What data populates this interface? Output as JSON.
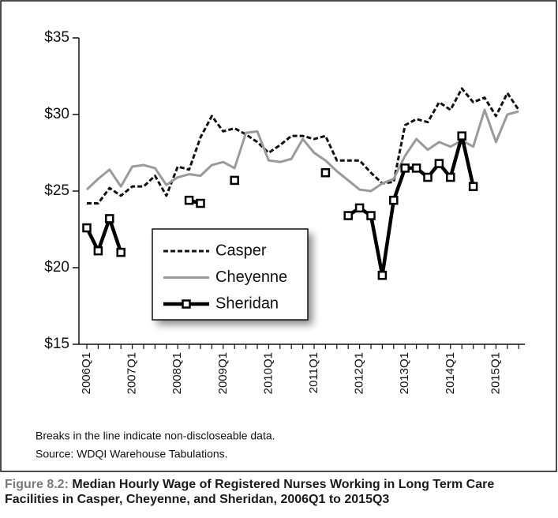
{
  "chart_data": {
    "type": "line",
    "title": "Median Hourly Wage of Registered Nurses Working in Long Term Care Facilities in Casper, Cheyenne, and Sheridan, 2006Q1 to 2015Q3",
    "figure_label": "Figure 8.2:",
    "notes": [
      "Breaks in the line indicate non-discloseable data.",
      "Source: WDQI Warehouse Tabulations."
    ],
    "categories": [
      "2006Q1",
      null,
      null,
      null,
      "2007Q1",
      null,
      null,
      null,
      "2008Q1",
      null,
      null,
      null,
      "2009Q1",
      null,
      null,
      null,
      "2010Q1",
      null,
      null,
      null,
      "2011Q1",
      null,
      null,
      null,
      "2012Q1",
      null,
      null,
      null,
      "2013Q1",
      null,
      null,
      null,
      "2014Q1",
      null,
      null,
      null,
      "2015Q1",
      null,
      null
    ],
    "series": [
      {
        "name": "Casper",
        "color": "#111111",
        "line_style": "dashed",
        "marker": "none",
        "values": [
          24.2,
          24.2,
          25.2,
          24.7,
          25.3,
          25.3,
          26.0,
          24.7,
          26.6,
          26.4,
          28.5,
          29.9,
          28.9,
          29.1,
          28.7,
          28.2,
          27.5,
          28.0,
          28.6,
          28.6,
          28.4,
          28.6,
          27.0,
          27.0,
          27.0,
          26.2,
          25.5,
          25.6,
          29.3,
          29.7,
          29.5,
          30.8,
          30.3,
          31.7,
          30.8,
          31.1,
          29.9,
          31.4,
          30.3
        ]
      },
      {
        "name": "Cheyenne",
        "color": "#9a9a9a",
        "line_style": "solid",
        "marker": "none",
        "values": [
          25.1,
          25.8,
          26.4,
          25.3,
          26.6,
          26.7,
          26.5,
          25.4,
          25.9,
          26.1,
          26.0,
          26.7,
          26.9,
          26.5,
          28.8,
          28.9,
          27.0,
          26.9,
          27.1,
          28.4,
          27.5,
          27.0,
          26.3,
          25.7,
          25.1,
          25.0,
          25.5,
          25.8,
          27.3,
          28.4,
          27.7,
          28.2,
          27.9,
          28.3,
          27.9,
          30.3,
          28.2,
          30.0,
          30.2
        ]
      },
      {
        "name": "Sheridan",
        "color": "#000000",
        "line_style": "solid",
        "marker": "square",
        "values": [
          22.6,
          21.1,
          23.2,
          21.0,
          null,
          null,
          null,
          null,
          null,
          24.4,
          24.2,
          null,
          null,
          25.7,
          null,
          null,
          null,
          null,
          null,
          null,
          null,
          26.2,
          null,
          23.4,
          23.9,
          23.4,
          19.5,
          24.4,
          26.5,
          26.5,
          25.9,
          26.8,
          25.9,
          28.6,
          25.3,
          null,
          null,
          null,
          null
        ]
      }
    ],
    "ylim": [
      15,
      35
    ],
    "yticks": [
      {
        "value": 15,
        "label": "$15"
      },
      {
        "value": 20,
        "label": "$20"
      },
      {
        "value": 25,
        "label": "$25"
      },
      {
        "value": 30,
        "label": "$30"
      },
      {
        "value": 35,
        "label": "$35"
      }
    ],
    "grid": false
  }
}
